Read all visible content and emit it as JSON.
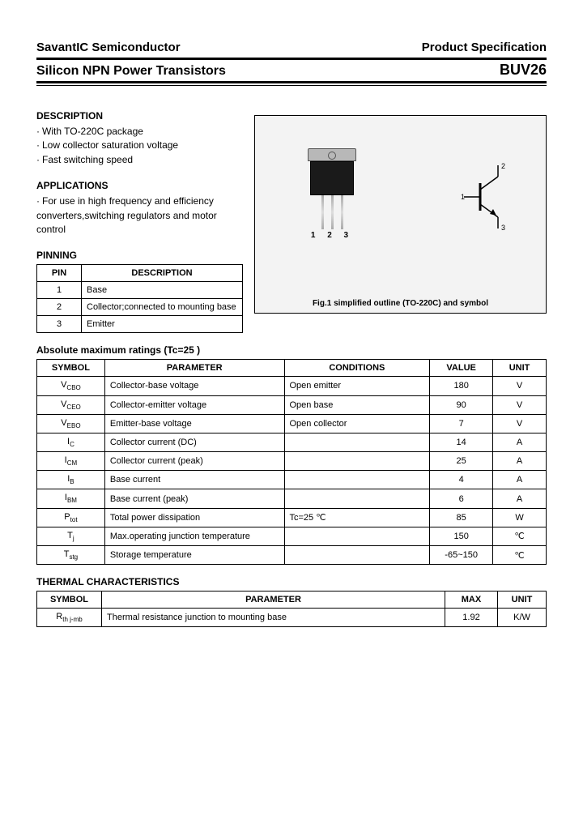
{
  "header": {
    "company": "SavantIC Semiconductor",
    "spec": "Product Specification",
    "title": "Silicon NPN Power Transistors",
    "part": "BUV26"
  },
  "description": {
    "heading": "DESCRIPTION",
    "items": [
      "With TO-220C package",
      "Low collector saturation voltage",
      "Fast switching speed"
    ]
  },
  "applications": {
    "heading": "APPLICATIONS",
    "items": [
      "For use in high frequency and efficiency converters,switching regulators and motor control"
    ]
  },
  "pinning": {
    "heading": "PINNING",
    "columns": [
      "PIN",
      "DESCRIPTION"
    ],
    "rows": [
      [
        "1",
        "Base"
      ],
      [
        "2",
        "Collector;connected to mounting base"
      ],
      [
        "3",
        "Emitter"
      ]
    ]
  },
  "figure": {
    "caption": "Fig.1 simplified outline (TO-220C) and symbol",
    "lead_numbers": "1 2 3",
    "sym_labels": {
      "b": "1",
      "c": "2",
      "e": "3"
    }
  },
  "ratings": {
    "heading": "Absolute maximum ratings (Tc=25 )",
    "columns": [
      "SYMBOL",
      "PARAMETER",
      "CONDITIONS",
      "VALUE",
      "UNIT"
    ],
    "rows": [
      {
        "sym": "V",
        "sub": "CBO",
        "param": "Collector-base voltage",
        "cond": "Open emitter",
        "val": "180",
        "unit": "V"
      },
      {
        "sym": "V",
        "sub": "CEO",
        "param": "Collector-emitter voltage",
        "cond": "Open base",
        "val": "90",
        "unit": "V"
      },
      {
        "sym": "V",
        "sub": "EBO",
        "param": "Emitter-base voltage",
        "cond": "Open collector",
        "val": "7",
        "unit": "V"
      },
      {
        "sym": "I",
        "sub": "C",
        "param": "Collector current (DC)",
        "cond": "",
        "val": "14",
        "unit": "A"
      },
      {
        "sym": "I",
        "sub": "CM",
        "param": "Collector current (peak)",
        "cond": "",
        "val": "25",
        "unit": "A"
      },
      {
        "sym": "I",
        "sub": "B",
        "param": "Base current",
        "cond": "",
        "val": "4",
        "unit": "A"
      },
      {
        "sym": "I",
        "sub": "BM",
        "param": "Base current (peak)",
        "cond": "",
        "val": "6",
        "unit": "A"
      },
      {
        "sym": "P",
        "sub": "tot",
        "param": "Total power dissipation",
        "cond": "Tc=25 ℃",
        "val": "85",
        "unit": "W"
      },
      {
        "sym": "T",
        "sub": "j",
        "param": "Max.operating junction temperature",
        "cond": "",
        "val": "150",
        "unit": "℃"
      },
      {
        "sym": "T",
        "sub": "stg",
        "param": "Storage temperature",
        "cond": "",
        "val": "-65~150",
        "unit": "℃"
      }
    ]
  },
  "thermal": {
    "heading": "THERMAL CHARACTERISTICS",
    "columns": [
      "SYMBOL",
      "PARAMETER",
      "MAX",
      "UNIT"
    ],
    "rows": [
      {
        "sym": "R",
        "sub": "th j-mb",
        "param": "Thermal resistance junction to mounting base",
        "max": "1.92",
        "unit": "K/W"
      }
    ]
  },
  "colors": {
    "text": "#000000",
    "background": "#ffffff",
    "figure_bg": "#f3f3f3",
    "pkg_body": "#1a1a1a",
    "pkg_tab": "#b8b8b8"
  }
}
